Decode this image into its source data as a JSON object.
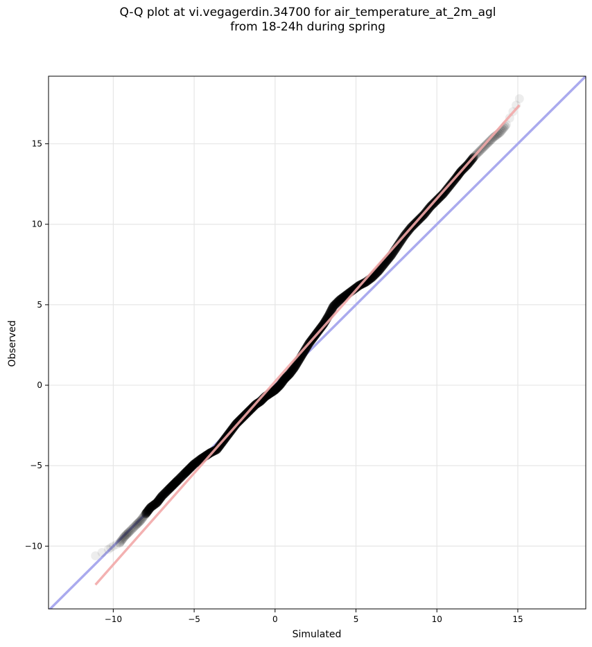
{
  "chart_data": {
    "type": "scatter",
    "title_line1": "Q-Q plot at vi.vegagerdin.34700 for air_temperature_at_2m_agl",
    "title_line2": "from 18-24h during spring",
    "xlabel": "Simulated",
    "ylabel": "Observed",
    "xlim": [
      -14,
      19.2
    ],
    "ylim": [
      -13.9,
      19.2
    ],
    "xticks": [
      -10,
      -5,
      0,
      5,
      10,
      15
    ],
    "yticks": [
      -10,
      -5,
      0,
      5,
      10,
      15
    ],
    "xtick_labels": [
      "−10",
      "−5",
      "0",
      "5",
      "10",
      "15"
    ],
    "ytick_labels": [
      "−10",
      "−5",
      "0",
      "5",
      "10",
      "15"
    ],
    "grid": true,
    "quantile_points": [
      [
        -11.1,
        -10.6
      ],
      [
        -10.3,
        -10.2
      ],
      [
        -10.0,
        -10.0
      ],
      [
        -9.6,
        -9.8
      ],
      [
        -9.3,
        -9.4
      ],
      [
        -9.0,
        -9.1
      ],
      [
        -8.6,
        -8.7
      ],
      [
        -8.3,
        -8.4
      ],
      [
        -8.0,
        -8.0
      ],
      [
        -7.7,
        -7.6
      ],
      [
        -7.3,
        -7.3
      ],
      [
        -7.0,
        -6.9
      ],
      [
        -6.6,
        -6.5
      ],
      [
        -6.3,
        -6.2
      ],
      [
        -6.0,
        -5.9
      ],
      [
        -5.6,
        -5.5
      ],
      [
        -5.3,
        -5.2
      ],
      [
        -5.0,
        -4.9
      ],
      [
        -4.6,
        -4.6
      ],
      [
        -4.3,
        -4.4
      ],
      [
        -4.0,
        -4.2
      ],
      [
        -3.6,
        -4.0
      ],
      [
        -3.3,
        -3.6
      ],
      [
        -3.0,
        -3.2
      ],
      [
        -2.7,
        -2.8
      ],
      [
        -2.4,
        -2.4
      ],
      [
        -2.1,
        -2.1
      ],
      [
        -1.8,
        -1.8
      ],
      [
        -1.5,
        -1.5
      ],
      [
        -1.2,
        -1.2
      ],
      [
        -0.9,
        -1.0
      ],
      [
        -0.6,
        -0.7
      ],
      [
        -0.3,
        -0.5
      ],
      [
        0.0,
        -0.3
      ],
      [
        0.3,
        0.0
      ],
      [
        0.6,
        0.4
      ],
      [
        0.9,
        0.7
      ],
      [
        1.2,
        1.1
      ],
      [
        1.5,
        1.6
      ],
      [
        1.8,
        2.1
      ],
      [
        2.1,
        2.6
      ],
      [
        2.4,
        3.0
      ],
      [
        2.7,
        3.4
      ],
      [
        3.0,
        3.8
      ],
      [
        3.3,
        4.3
      ],
      [
        3.6,
        4.9
      ],
      [
        4.0,
        5.3
      ],
      [
        4.4,
        5.6
      ],
      [
        4.8,
        5.9
      ],
      [
        5.2,
        6.2
      ],
      [
        5.6,
        6.4
      ],
      [
        6.0,
        6.7
      ],
      [
        6.4,
        7.1
      ],
      [
        6.8,
        7.6
      ],
      [
        7.2,
        8.1
      ],
      [
        7.6,
        8.7
      ],
      [
        8.0,
        9.3
      ],
      [
        8.4,
        9.8
      ],
      [
        8.8,
        10.2
      ],
      [
        9.2,
        10.6
      ],
      [
        9.6,
        11.1
      ],
      [
        10.0,
        11.5
      ],
      [
        10.4,
        11.9
      ],
      [
        10.8,
        12.4
      ],
      [
        11.2,
        12.9
      ],
      [
        11.5,
        13.3
      ],
      [
        11.9,
        13.7
      ],
      [
        12.3,
        14.2
      ],
      [
        12.7,
        14.6
      ],
      [
        13.1,
        15.0
      ],
      [
        13.5,
        15.4
      ],
      [
        13.9,
        15.7
      ],
      [
        14.3,
        16.2
      ],
      [
        14.7,
        17.0
      ],
      [
        15.1,
        17.8
      ]
    ],
    "reference_line_1to1": {
      "color": "#aaaaee",
      "points": [
        [
          -14,
          -14
        ],
        [
          19.2,
          19.2
        ]
      ]
    },
    "fit_line": {
      "color": "#f2a8a8",
      "points": [
        [
          -11.1,
          -12.4
        ],
        [
          15.1,
          17.4
        ]
      ]
    },
    "colors": {
      "points": "#000000",
      "grid": "#e6e6e6",
      "axis": "#000000"
    }
  }
}
